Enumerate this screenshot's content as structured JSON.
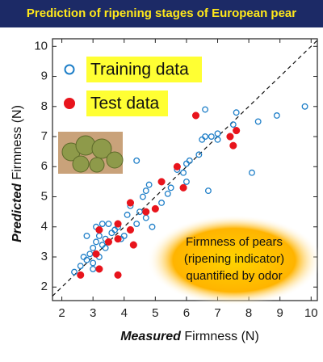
{
  "chart_data": {
    "type": "scatter",
    "title": "Prediction of ripening stages of European pear",
    "xlabel": {
      "emphasis": "Measured",
      "text": "Firmness (N)"
    },
    "ylabel": {
      "emphasis": "Predicted",
      "text": "Firmness (N)"
    },
    "annotation": [
      "Firmness of pears",
      "(ripening indicator)",
      "quantified by odor"
    ],
    "xlim": [
      1.7,
      10.2
    ],
    "ylim": [
      1.55,
      10.25
    ],
    "xticks": [
      2,
      3,
      4,
      5,
      6,
      7,
      8,
      9,
      10
    ],
    "yticks": [
      2,
      3,
      4,
      5,
      6,
      7,
      8,
      9,
      10
    ],
    "reference_line": true,
    "series": [
      {
        "name": "Training data",
        "color": "#1f7fc8",
        "marker": "open",
        "x": [
          2.4,
          2.6,
          2.7,
          2.9,
          3.0,
          3.0,
          3.1,
          3.2,
          3.2,
          3.3,
          3.4,
          3.5,
          3.6,
          3.4,
          3.7,
          3.8,
          3.9,
          3.1,
          2.8,
          3.3,
          4.0,
          4.1,
          4.2,
          4.4,
          4.5,
          4.6,
          4.7,
          4.8,
          4.7,
          4.4,
          5.2,
          5.4,
          5.5,
          5.7,
          5.9,
          6.0,
          6.0,
          6.1,
          6.4,
          6.5,
          6.6,
          6.6,
          6.8,
          7.0,
          7.0,
          6.7,
          7.5,
          7.6,
          8.1,
          8.3,
          8.9,
          9.8,
          4.9,
          3.0,
          2.8
        ],
        "y": [
          2.5,
          2.7,
          3.0,
          3.1,
          2.8,
          3.3,
          3.5,
          3.0,
          3.7,
          3.4,
          3.3,
          4.1,
          3.8,
          3.6,
          3.9,
          4.0,
          3.6,
          4.0,
          3.7,
          4.1,
          3.7,
          4.4,
          4.7,
          4.1,
          4.5,
          5.0,
          5.2,
          5.4,
          4.3,
          6.2,
          4.8,
          5.1,
          5.3,
          5.9,
          5.8,
          6.1,
          5.5,
          6.2,
          6.4,
          6.9,
          7.0,
          7.9,
          7.0,
          7.1,
          6.9,
          5.2,
          7.4,
          7.8,
          5.8,
          7.5,
          7.7,
          8.0,
          4.0,
          2.6,
          2.9
        ]
      },
      {
        "name": "Test data",
        "color": "#e8141c",
        "marker": "filled",
        "x": [
          2.6,
          3.2,
          3.8,
          3.1,
          3.5,
          3.2,
          3.8,
          4.2,
          3.8,
          4.2,
          4.7,
          5.0,
          5.2,
          5.7,
          5.9,
          6.3,
          7.4,
          7.5,
          7.6,
          4.3
        ],
        "y": [
          2.4,
          2.6,
          2.4,
          3.1,
          3.5,
          3.9,
          4.1,
          3.9,
          3.6,
          4.8,
          4.5,
          4.6,
          5.5,
          6.0,
          5.3,
          7.7,
          7.0,
          6.7,
          7.2,
          3.4
        ]
      }
    ]
  }
}
